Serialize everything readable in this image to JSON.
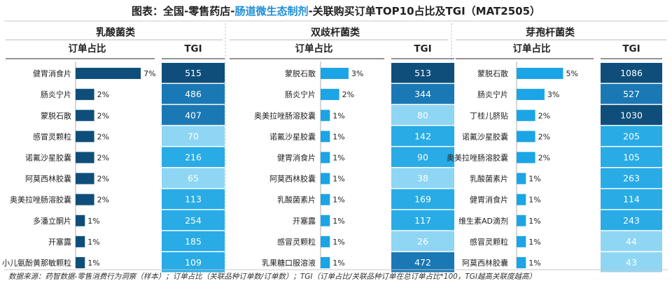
{
  "title": {
    "prefix": "图表：全国-零售药店-",
    "highlight": "肠道微生态制剂",
    "suffix": "-关联购买订单TOP10占比及TGI（MAT2505）"
  },
  "colors": {
    "title_highlight": "#1e8fd8",
    "bar_dark": "#0f4e7a",
    "bar_light": "#1ba4e6",
    "tgi_dark": "#0f4e7a",
    "tgi_mid": "#1a78b4",
    "tgi_blue": "#29abe6",
    "tgi_light": "#8fd6f4"
  },
  "column_headers": {
    "share": "订单占比",
    "tgi": "TGI"
  },
  "footer": "数据来源：药智数据-零售消费行为洞察（样本）；订单占比（关联品种订单数/订单数）；TGI（订单占比/关联品种订单在总订单占比*100，TGI越高关联度越高）",
  "chart_data": [
    {
      "type": "bar",
      "group": "乳酸菌类",
      "bar_color": "dark",
      "categories": [
        "健胃消食片",
        "肠炎宁片",
        "蒙脱石散",
        "感冒灵颗粒",
        "诺氟沙星胶囊",
        "阿莫西林胶囊",
        "奥美拉唑肠溶胶囊",
        "多潘立酮片",
        "开塞露",
        "小儿氨酚黄那敏颗粒"
      ],
      "values": [
        7,
        2,
        2,
        2,
        2,
        2,
        2,
        1,
        1,
        1
      ],
      "labels": [
        "7%",
        "2%",
        "2%",
        "2%",
        "2%",
        "2%",
        "2%",
        "1%",
        "1%",
        "1%"
      ],
      "tgi": [
        515,
        486,
        407,
        70,
        216,
        65,
        113,
        254,
        185,
        109
      ],
      "tgi_colors": [
        "tgi_dark",
        "tgi_mid",
        "tgi_mid",
        "tgi_light",
        "tgi_blue",
        "tgi_light",
        "tgi_blue",
        "tgi_blue",
        "tgi_blue",
        "tgi_blue"
      ]
    },
    {
      "type": "bar",
      "group": "双歧杆菌类",
      "bar_color": "light",
      "categories": [
        "蒙脱石散",
        "肠炎宁片",
        "奥美拉唑肠溶胶囊",
        "诺氟沙星胶囊",
        "健胃消食片",
        "阿莫西林胶囊",
        "乳酸菌素片",
        "开塞露",
        "感冒灵颗粒",
        "乳果糖口服溶液"
      ],
      "values": [
        3,
        2,
        1,
        1,
        1,
        1,
        1,
        1,
        1,
        1
      ],
      "labels": [
        "3%",
        "2%",
        "1%",
        "1%",
        "1%",
        "1%",
        "1%",
        "1%",
        "1%",
        "1%"
      ],
      "tgi": [
        513,
        344,
        80,
        142,
        90,
        38,
        169,
        117,
        26,
        472
      ],
      "tgi_colors": [
        "tgi_dark",
        "tgi_mid",
        "tgi_light",
        "tgi_blue",
        "tgi_blue",
        "tgi_light",
        "tgi_blue",
        "tgi_blue",
        "tgi_light",
        "tgi_mid"
      ]
    },
    {
      "type": "bar",
      "group": "芽孢杆菌类",
      "bar_color": "light",
      "categories": [
        "蒙脱石散",
        "肠炎宁片",
        "丁桂儿脐贴",
        "诺氟沙星胶囊",
        "奥美拉唑肠溶胶囊",
        "乳酸菌素片",
        "健胃消食片",
        "维生素AD滴剂",
        "感冒灵颗粒",
        "阿莫西林胶囊"
      ],
      "values": [
        5,
        3,
        2,
        2,
        2,
        1,
        1,
        1,
        1,
        1
      ],
      "labels": [
        "5%",
        "3%",
        "2%",
        "2%",
        "2%",
        "1%",
        "1%",
        "1%",
        "1%",
        "1%"
      ],
      "tgi": [
        1086,
        527,
        1030,
        205,
        105,
        263,
        114,
        243,
        44,
        43
      ],
      "tgi_colors": [
        "tgi_dark",
        "tgi_mid",
        "tgi_dark",
        "tgi_blue",
        "tgi_blue",
        "tgi_blue",
        "tgi_blue",
        "tgi_blue",
        "tgi_light",
        "tgi_light"
      ]
    }
  ]
}
